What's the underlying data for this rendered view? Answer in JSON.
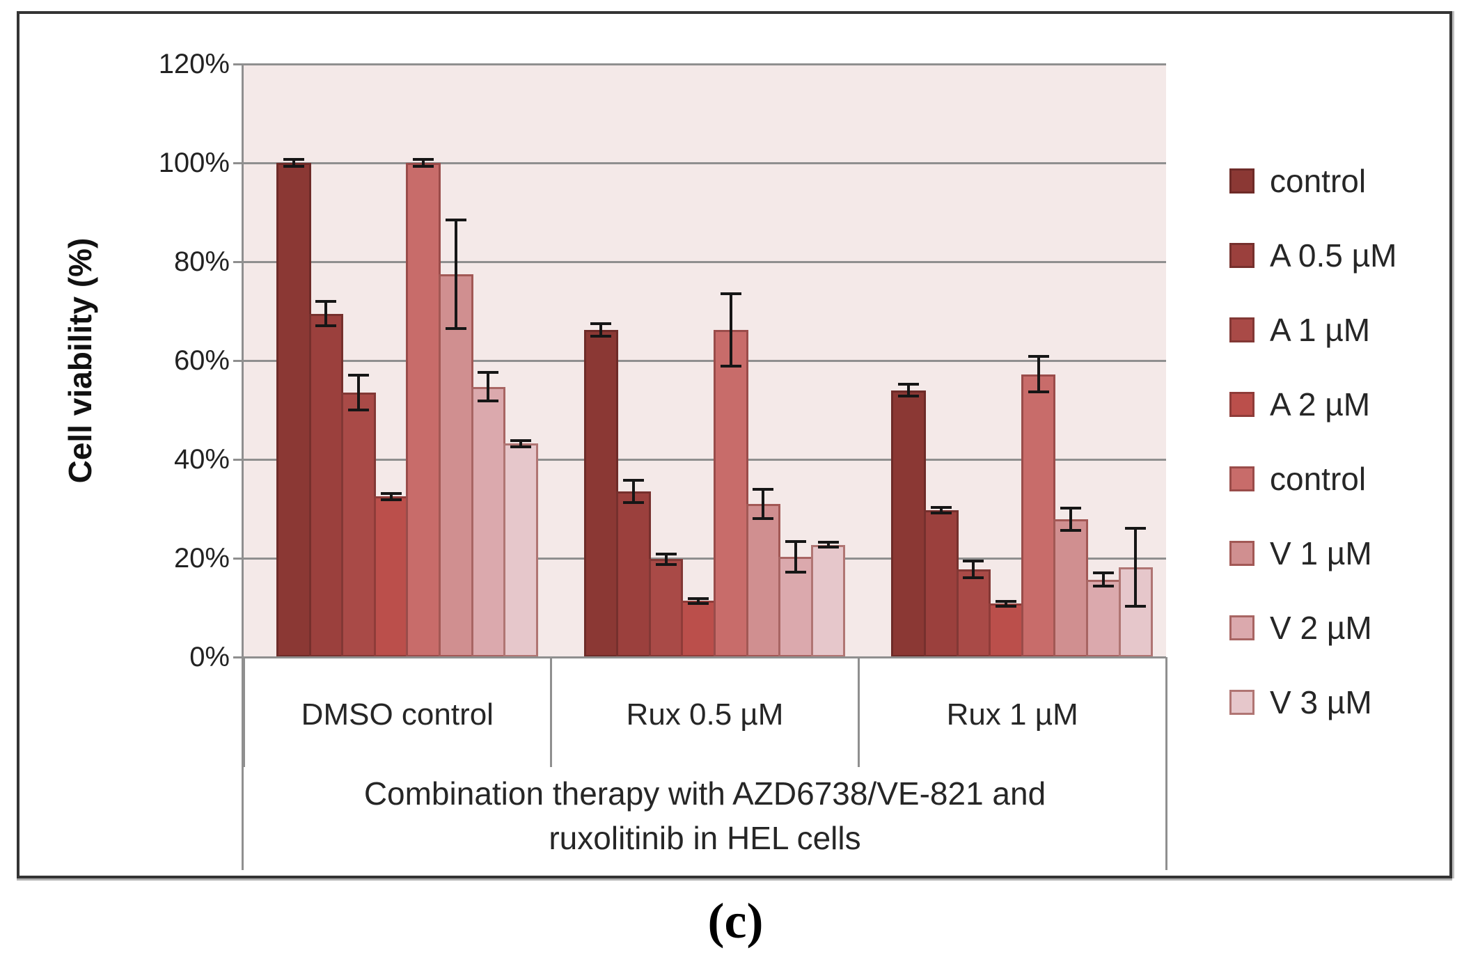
{
  "figure": {
    "caption": "(c)"
  },
  "style": {
    "plot_bg": "#F4E9E8",
    "grid_color": "#8F8F8F",
    "error_bar_color": "#161616",
    "text_color": "#262626"
  },
  "chart_data": {
    "type": "bar",
    "title": "Combination therapy with AZD6738/VE-821 and ruxolitinib in HEL cells",
    "title_lines": [
      "Combination therapy with AZD6738/VE-821 and",
      "ruxolitinib in HEL cells"
    ],
    "xlabel": "Combination therapy with AZD6738/VE-821 and ruxolitinib in HEL cells",
    "ylabel": "Cell viability (%)",
    "ylim": [
      0,
      120
    ],
    "y_tick_step": 20,
    "y_tick_labels": [
      "0%",
      "20%",
      "40%",
      "60%",
      "80%",
      "100%",
      "120%"
    ],
    "grid": true,
    "legend_position": "right",
    "error_bars": true,
    "categories": [
      "DMSO control",
      "Rux 0.5 µM",
      "Rux 1 µM"
    ],
    "series": [
      {
        "name": "control",
        "color": "#8B3834",
        "border": "#6E2B28",
        "values": [
          100,
          66.2,
          54
        ],
        "errors": [
          0.7,
          1.3,
          1.2
        ]
      },
      {
        "name": "A 0.5 µM",
        "color": "#9B403D",
        "border": "#76302D",
        "values": [
          69.5,
          33.5,
          29.7
        ],
        "errors": [
          2.5,
          2.3,
          0.6
        ]
      },
      {
        "name": "A 1 µM",
        "color": "#A94A47",
        "border": "#823835",
        "values": [
          53.5,
          19.8,
          17.7
        ],
        "errors": [
          3.5,
          1.0,
          1.7
        ]
      },
      {
        "name": "A 2 µM",
        "color": "#BB4F4B",
        "border": "#8F3C39",
        "values": [
          32.5,
          11.4,
          10.8
        ],
        "errors": [
          0.6,
          0.5,
          0.5
        ]
      },
      {
        "name": "control",
        "color": "#C86C6A",
        "border": "#9A4C4A",
        "values": [
          100,
          66.2,
          57.2
        ],
        "errors": [
          0.7,
          7.3,
          3.6
        ]
      },
      {
        "name": "V 1 µM",
        "color": "#D08F90",
        "border": "#A25855",
        "values": [
          77.5,
          31,
          27.9
        ],
        "errors": [
          11,
          3.0,
          2.2
        ]
      },
      {
        "name": "V 2 µM",
        "color": "#DBA9AD",
        "border": "#A86563",
        "values": [
          54.7,
          20.3,
          15.7
        ],
        "errors": [
          2.9,
          3.1,
          1.4
        ]
      },
      {
        "name": "V 3 µM",
        "color": "#E6C7CB",
        "border": "#B07573",
        "values": [
          43.2,
          22.7,
          18.2
        ],
        "errors": [
          0.6,
          0.5,
          7.9
        ]
      }
    ]
  }
}
